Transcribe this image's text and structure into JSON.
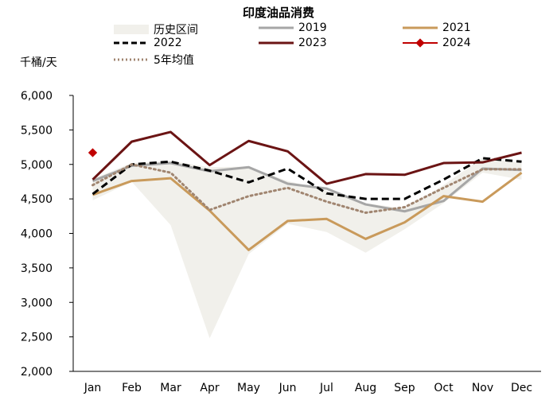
{
  "chart_data": {
    "type": "line",
    "title": "印度油品消费",
    "ylabel": "千桶/天",
    "xlabel": "",
    "categories": [
      "Jan",
      "Feb",
      "Mar",
      "Apr",
      "May",
      "Jun",
      "Jul",
      "Aug",
      "Sep",
      "Oct",
      "Nov",
      "Dec"
    ],
    "ylim": [
      2000,
      6000
    ],
    "yticks": [
      "2,000",
      "2,500",
      "3,000",
      "3,500",
      "4,000",
      "4,500",
      "5,000",
      "5,500",
      "6,000"
    ],
    "grid": false,
    "legend_position": "top",
    "band": {
      "name": "历史区间",
      "color": "#f1f0eb",
      "lower": [
        4480,
        4750,
        4120,
        2480,
        3700,
        4140,
        4020,
        3720,
        4060,
        4440,
        4880,
        4780
      ],
      "upper": [
        4790,
        5020,
        5050,
        4960,
        4970,
        4760,
        4620,
        4440,
        4360,
        4700,
        5100,
        5020
      ]
    },
    "series": [
      {
        "name": "2019",
        "color": "#a6a6a6",
        "dash": "solid",
        "values": [
          4760,
          4980,
          5020,
          4900,
          4960,
          4720,
          4650,
          4420,
          4320,
          4470,
          4940,
          4920
        ]
      },
      {
        "name": "2021",
        "color": "#c99a5b",
        "dash": "solid",
        "values": [
          4560,
          4760,
          4800,
          4330,
          3760,
          4180,
          4210,
          3920,
          4160,
          4540,
          4460,
          4880
        ]
      },
      {
        "name": "2022",
        "color": "#000000",
        "dash": "dashed",
        "values": [
          4570,
          5000,
          5040,
          4910,
          4740,
          4940,
          4580,
          4500,
          4500,
          4780,
          5090,
          5040
        ]
      },
      {
        "name": "2023",
        "color": "#6b1414",
        "dash": "solid",
        "values": [
          4780,
          5330,
          5470,
          4990,
          5340,
          5190,
          4720,
          4860,
          4850,
          5020,
          5030,
          5170
        ]
      },
      {
        "name": "2024",
        "color": "#c00000",
        "dash": "marker",
        "values": [
          5170,
          null,
          null,
          null,
          null,
          null,
          null,
          null,
          null,
          null,
          null,
          null
        ]
      },
      {
        "name": "5年均值",
        "color": "#a08570",
        "dash": "dotted",
        "values": [
          4700,
          5000,
          4880,
          4340,
          4540,
          4660,
          4460,
          4300,
          4380,
          4660,
          4930,
          4930
        ]
      }
    ]
  }
}
